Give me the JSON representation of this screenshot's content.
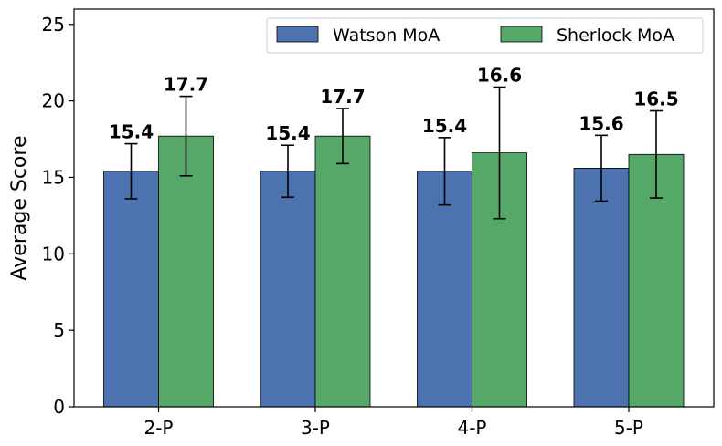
{
  "chart_data": {
    "type": "bar",
    "title": "",
    "xlabel": "",
    "ylabel": "Average Score",
    "ylim": [
      0,
      26
    ],
    "yticks": [
      0,
      5,
      10,
      15,
      20,
      25
    ],
    "categories": [
      "2-P",
      "3-P",
      "4-P",
      "5-P"
    ],
    "series": [
      {
        "name": "Watson MoA",
        "color": "#4c72b0",
        "values": [
          15.4,
          15.4,
          15.4,
          15.6
        ],
        "errors": [
          1.8,
          1.7,
          2.2,
          2.15
        ],
        "labels": [
          "15.4",
          "15.4",
          "15.4",
          "15.6"
        ]
      },
      {
        "name": "Sherlock MoA",
        "color": "#55a868",
        "values": [
          17.7,
          17.7,
          16.6,
          16.5
        ],
        "errors": [
          2.6,
          1.8,
          4.3,
          2.85
        ],
        "labels": [
          "17.7",
          "17.7",
          "16.6",
          "16.5"
        ]
      }
    ],
    "legend": "top-right",
    "grid": false
  }
}
